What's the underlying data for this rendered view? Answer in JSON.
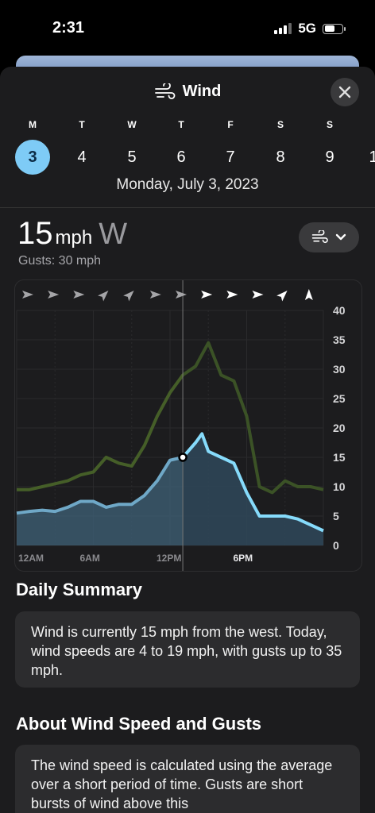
{
  "status_bar": {
    "time": "2:31",
    "network": "5G"
  },
  "sheet": {
    "title": "Wind",
    "close_label": "×",
    "days": [
      {
        "dow": "M",
        "num": "3",
        "selected": true
      },
      {
        "dow": "T",
        "num": "4"
      },
      {
        "dow": "W",
        "num": "5"
      },
      {
        "dow": "T",
        "num": "6"
      },
      {
        "dow": "F",
        "num": "7"
      },
      {
        "dow": "S",
        "num": "8"
      },
      {
        "dow": "S",
        "num": "9"
      },
      {
        "dow": "",
        "num": "1"
      }
    ],
    "date": "Monday, July 3, 2023"
  },
  "current": {
    "speed": "15",
    "unit": "mph",
    "direction": "W",
    "gusts": "Gusts: 30 mph"
  },
  "chart_data": {
    "type": "area",
    "x_ticks": [
      "12AM",
      "6AM",
      "12PM",
      "6PM"
    ],
    "highlighted_tick": "6PM",
    "y_ticks": [
      "40",
      "35",
      "30",
      "25",
      "20",
      "15",
      "10",
      "5",
      "0"
    ],
    "ylim": [
      0,
      40
    ],
    "xlim": [
      0,
      24
    ],
    "current_hour": 13,
    "current_speed": 15,
    "wind_direction_arrows": [
      "E",
      "E",
      "E",
      "NE",
      "NE",
      "E",
      "E",
      "E",
      "E",
      "E",
      "NE",
      "N"
    ],
    "series": [
      {
        "name": "Wind",
        "color": "#7fd4f6",
        "x": [
          0,
          1,
          2,
          3,
          4,
          5,
          6,
          7,
          8,
          9,
          10,
          11,
          12,
          13,
          14,
          14.5,
          15,
          16,
          17,
          18,
          19,
          20,
          21,
          22,
          23,
          24
        ],
        "values": [
          5.5,
          5.8,
          6,
          5.8,
          6.5,
          7.5,
          7.5,
          6.5,
          7,
          7,
          8.5,
          11,
          14.5,
          15,
          17.5,
          19,
          16,
          15,
          14,
          9,
          5,
          5,
          5,
          4.5,
          3.5,
          2.5
        ]
      },
      {
        "name": "Gusts",
        "color": "#6c8b38",
        "x": [
          0,
          1,
          2,
          3,
          4,
          5,
          6,
          7,
          8,
          9,
          10,
          11,
          12,
          13,
          14,
          15,
          16,
          17,
          18,
          19,
          20,
          21,
          22,
          23,
          24
        ],
        "values": [
          9.5,
          9.5,
          10,
          10.5,
          11,
          12,
          12.5,
          15,
          14,
          13.5,
          17,
          22,
          26,
          29,
          30.5,
          34.5,
          29,
          28,
          22,
          10,
          9,
          11,
          10,
          10,
          9.5
        ]
      }
    ]
  },
  "daily_summary": {
    "title": "Daily Summary",
    "text": "Wind is currently 15 mph from the west. Today, wind speeds are 4 to 19 mph, with gusts up to 35 mph."
  },
  "about": {
    "title": "About Wind Speed and Gusts",
    "text": "The wind speed is calculated using the average over a short period of time. Gusts are short bursts of wind above this"
  },
  "colors": {
    "accent": "#7ecbf6",
    "sheet_bg": "#1c1c1e",
    "card_bg": "#2c2c2e"
  }
}
